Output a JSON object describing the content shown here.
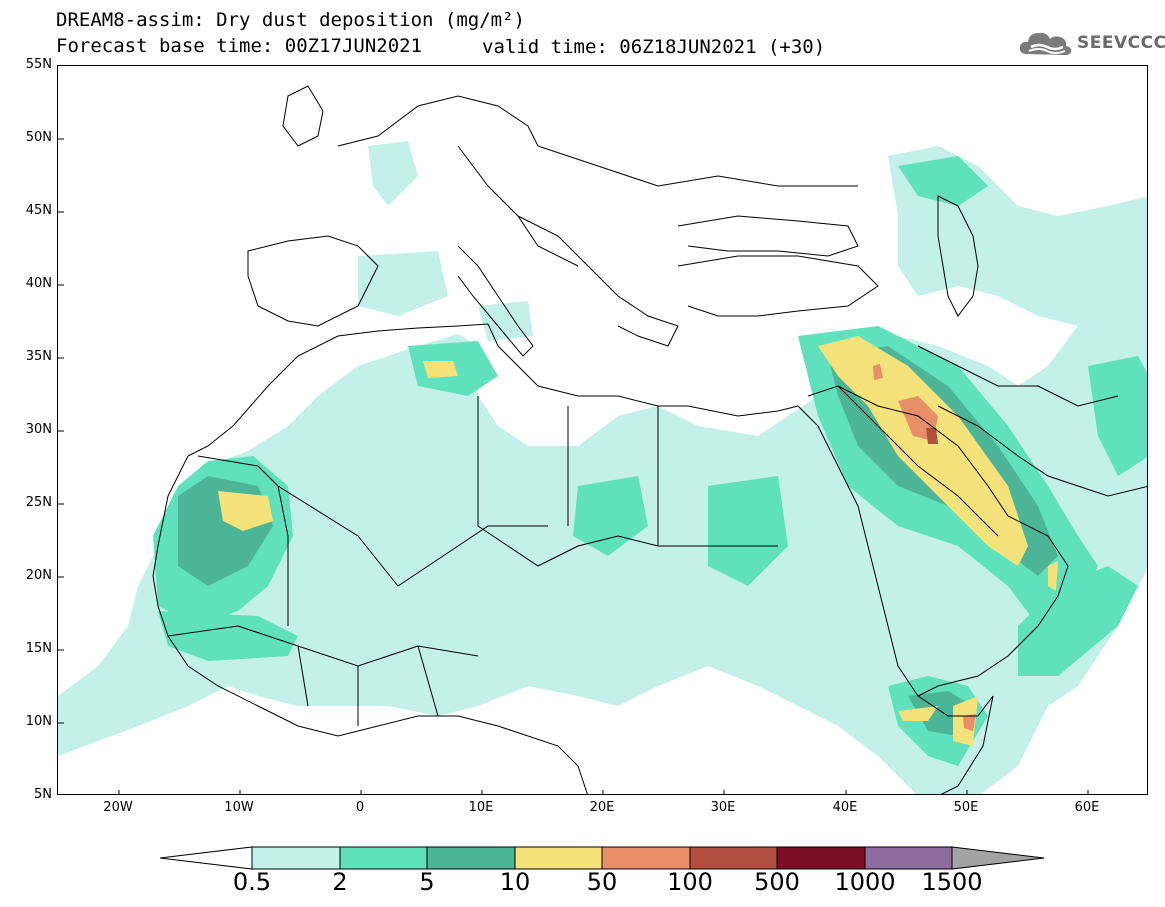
{
  "title": {
    "line1": "DREAM8-assim: Dry dust deposition (mg/m²)",
    "line2": "Forecast base time: 00Z17JUN2021",
    "valid": "valid time: 06Z18JUN2021 (+30)"
  },
  "logo": {
    "text": "SEEVCCC",
    "icon": "cloud-icon"
  },
  "lat_labels": [
    "55N",
    "50N",
    "45N",
    "40N",
    "35N",
    "30N",
    "25N",
    "20N",
    "15N",
    "10N",
    "5N"
  ],
  "lon_labels": [
    "20W",
    "10W",
    "0",
    "10E",
    "20E",
    "30E",
    "40E",
    "50E",
    "60E"
  ],
  "colorbar": {
    "labels": [
      "0.5",
      "2",
      "5",
      "10",
      "50",
      "100",
      "500",
      "1000",
      "1500"
    ],
    "colors": [
      "#c3f0e8",
      "#5fe1be",
      "#4db597",
      "#f5e27a",
      "#e88f6a",
      "#b34f3e",
      "#7b0f25",
      "#8f6ca0",
      "#a3a3a3"
    ]
  },
  "map": {
    "extent": {
      "lon": [
        -25,
        65
      ],
      "lat": [
        5,
        55
      ]
    }
  }
}
